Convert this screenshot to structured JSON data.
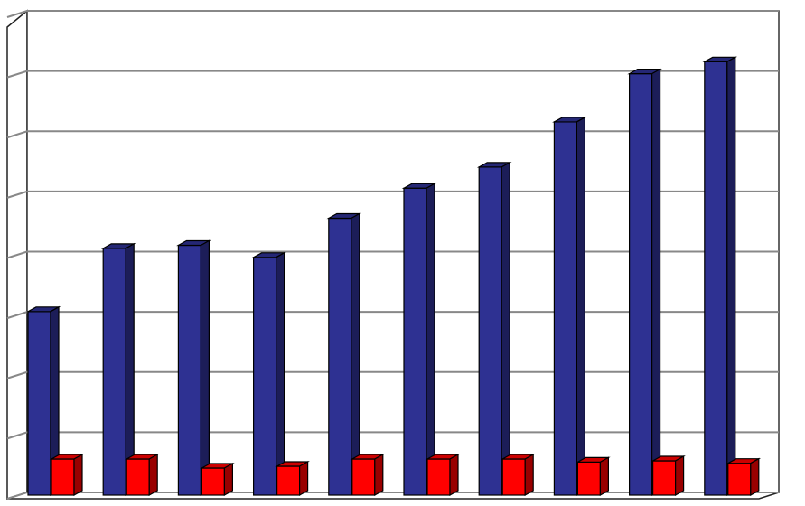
{
  "chart_data": {
    "type": "bar3d",
    "categories": [
      null,
      null,
      null,
      null,
      null,
      null,
      null,
      null,
      null,
      null
    ],
    "series": [
      {
        "color": "#2e3192",
        "values": [
          3.05,
          4.1,
          4.15,
          3.95,
          4.6,
          5.1,
          5.45,
          6.2,
          7.0,
          7.2
        ]
      },
      {
        "color": "#ff0000",
        "values": [
          0.6,
          0.6,
          0.45,
          0.48,
          0.6,
          0.6,
          0.6,
          0.55,
          0.57,
          0.53
        ]
      }
    ],
    "ylim": [
      0,
      8
    ],
    "yticks": [
      0,
      1,
      2,
      3,
      4,
      5,
      6,
      7,
      8
    ],
    "grid": true
  }
}
